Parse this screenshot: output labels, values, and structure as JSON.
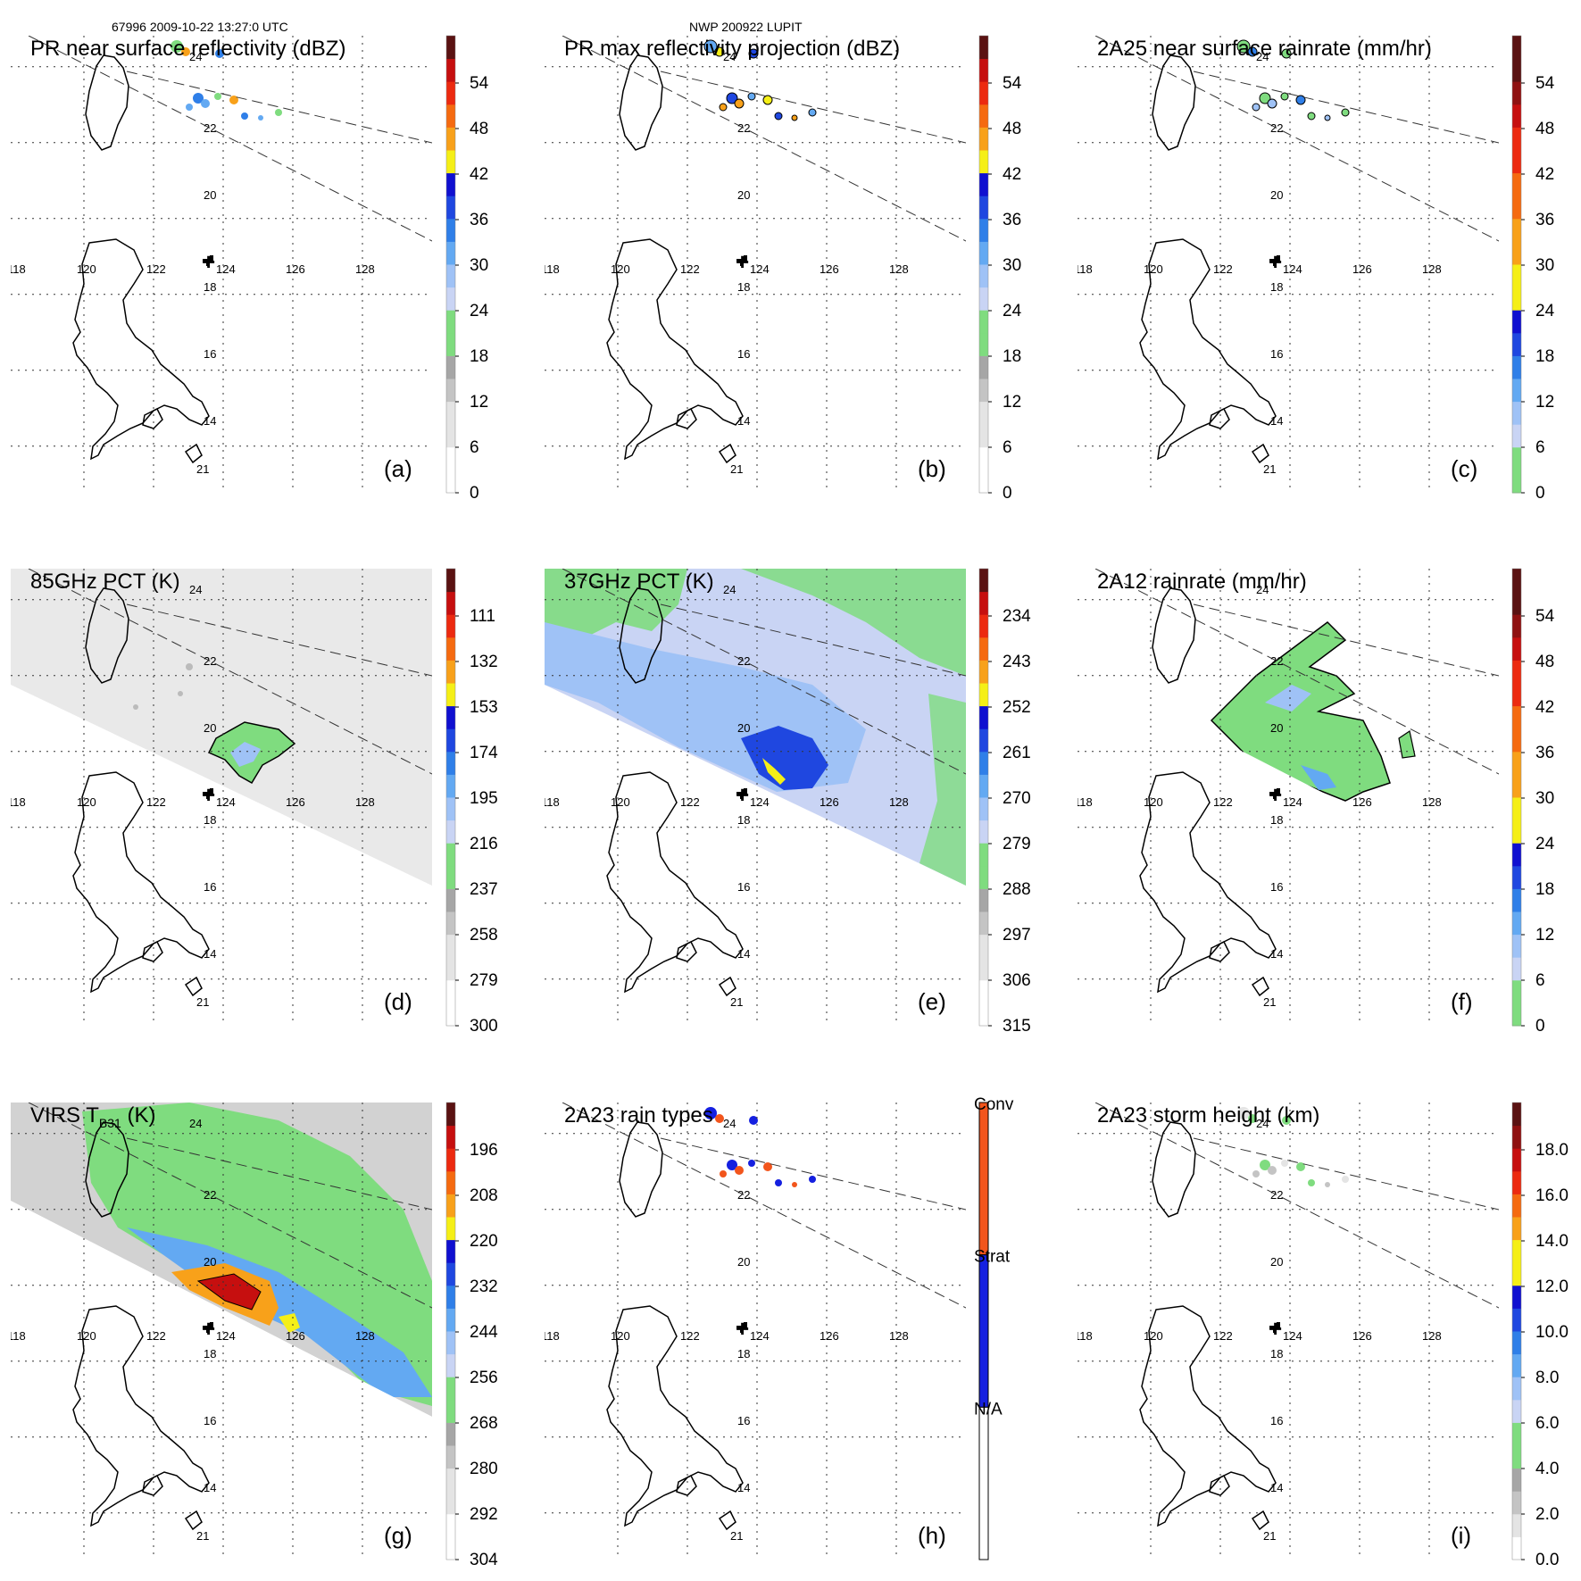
{
  "header": {
    "orbit_time": "67996 2009-10-22 13:27:0 UTC",
    "storm": "NWP 200922 LUPIT"
  },
  "colors": {
    "gray_ramp": [
      "#ffffff",
      "#e4e4e4",
      "#c4c4c4",
      "#a6a6a6"
    ],
    "green": "#7fdc7f",
    "blue_ramp": [
      "#c9d4f4",
      "#9fc2f6",
      "#63a9f2",
      "#2f7fe8",
      "#1f47e0",
      "#1010d0"
    ],
    "yellow": "#f5ef17",
    "warm_ramp": [
      "#f8a11a",
      "#f56a10",
      "#ec2a10",
      "#c60f0f",
      "#8f1111",
      "#5a1212"
    ],
    "conv": "#f2551c",
    "strat": "#1520e0",
    "na": "#ffffff"
  },
  "chart_data": [
    {
      "id": "a",
      "label": "(a)",
      "type": "map",
      "title": "PR near surface reflectivity (dBZ)",
      "colorbar_ticks": [
        "0",
        "6",
        "12",
        "18",
        "24",
        "30",
        "36",
        "42",
        "48",
        "54"
      ],
      "colorbar_scheme": "reflectivity",
      "lon_ticks": [
        "118",
        "120",
        "122",
        "124",
        "126",
        "128"
      ],
      "lat_ticks": [
        "24",
        "22",
        "20",
        "18",
        "16",
        "14",
        "21"
      ],
      "fill": "pr_rain"
    },
    {
      "id": "b",
      "label": "(b)",
      "type": "map",
      "title": "PR max reflectivity projection (dBZ)",
      "colorbar_ticks": [
        "0",
        "6",
        "12",
        "18",
        "24",
        "30",
        "36",
        "42",
        "48",
        "54"
      ],
      "colorbar_scheme": "reflectivity",
      "lon_ticks": [
        "118",
        "120",
        "122",
        "124",
        "126",
        "128"
      ],
      "lat_ticks": [
        "24",
        "22",
        "20",
        "18",
        "16",
        "14",
        "21"
      ],
      "fill": "pr_max"
    },
    {
      "id": "c",
      "label": "(c)",
      "type": "map",
      "title": "2A25 near surface rainrate (mm/hr)",
      "colorbar_ticks": [
        "0",
        "6",
        "12",
        "18",
        "24",
        "30",
        "36",
        "42",
        "48",
        "54"
      ],
      "colorbar_scheme": "rainrate",
      "lon_ticks": [
        "118",
        "120",
        "122",
        "124",
        "126",
        "128"
      ],
      "lat_ticks": [
        "24",
        "22",
        "20",
        "18",
        "16",
        "14",
        "21"
      ],
      "fill": "pr_rainrate"
    },
    {
      "id": "d",
      "label": "(d)",
      "type": "map",
      "title": "85GHz PCT (K)",
      "colorbar_ticks": [
        "300",
        "279",
        "258",
        "237",
        "216",
        "195",
        "174",
        "153",
        "132",
        "111"
      ],
      "colorbar_scheme": "reflectivity",
      "lon_ticks": [
        "118",
        "120",
        "122",
        "124",
        "126",
        "128"
      ],
      "lat_ticks": [
        "24",
        "22",
        "20",
        "18",
        "16",
        "14",
        "21"
      ],
      "fill": "pct85"
    },
    {
      "id": "e",
      "label": "(e)",
      "type": "map",
      "title": "37GHz PCT (K)",
      "colorbar_ticks": [
        "315",
        "306",
        "297",
        "288",
        "279",
        "270",
        "261",
        "252",
        "243",
        "234"
      ],
      "colorbar_scheme": "reflectivity",
      "lon_ticks": [
        "118",
        "120",
        "122",
        "124",
        "126",
        "128"
      ],
      "lat_ticks": [
        "24",
        "22",
        "20",
        "18",
        "16",
        "14",
        "21"
      ],
      "fill": "pct37"
    },
    {
      "id": "f",
      "label": "(f)",
      "type": "map",
      "title": "2A12 rainrate (mm/hr)",
      "colorbar_ticks": [
        "0",
        "6",
        "12",
        "18",
        "24",
        "30",
        "36",
        "42",
        "48",
        "54"
      ],
      "colorbar_scheme": "rainrate",
      "lon_ticks": [
        "118",
        "120",
        "122",
        "124",
        "126",
        "128"
      ],
      "lat_ticks": [
        "24",
        "22",
        "20",
        "18",
        "16",
        "14",
        "21"
      ],
      "fill": "tmi_rain"
    },
    {
      "id": "g",
      "label": "(g)",
      "type": "map",
      "title": "VIRS T",
      "title_sub": "B31",
      "title_tail": " (K)",
      "colorbar_ticks": [
        "304",
        "292",
        "280",
        "268",
        "256",
        "244",
        "232",
        "220",
        "208",
        "196"
      ],
      "colorbar_scheme": "reflectivity",
      "lon_ticks": [
        "118",
        "120",
        "122",
        "124",
        "126",
        "128"
      ],
      "lat_ticks": [
        "24",
        "22",
        "20",
        "18",
        "16",
        "14",
        "21"
      ],
      "fill": "virs"
    },
    {
      "id": "h",
      "label": "(h)",
      "type": "map",
      "title": "2A23 rain types",
      "colorbar_ticks": [
        "N/A",
        "Strat",
        "Conv"
      ],
      "colorbar_scheme": "raintype",
      "lon_ticks": [
        "118",
        "120",
        "122",
        "124",
        "126",
        "128"
      ],
      "lat_ticks": [
        "24",
        "22",
        "20",
        "18",
        "16",
        "14",
        "21"
      ],
      "fill": "raintype"
    },
    {
      "id": "i",
      "label": "(i)",
      "type": "map",
      "title": "2A23 storm height (km)",
      "colorbar_ticks": [
        "0.0",
        "2.0",
        "4.0",
        "6.0",
        "8.0",
        "10.0",
        "12.0",
        "14.0",
        "16.0",
        "18.0"
      ],
      "colorbar_scheme": "height",
      "lon_ticks": [
        "118",
        "120",
        "122",
        "124",
        "126",
        "128"
      ],
      "lat_ticks": [
        "24",
        "22",
        "20",
        "18",
        "16",
        "14",
        "21"
      ],
      "fill": "height"
    }
  ]
}
